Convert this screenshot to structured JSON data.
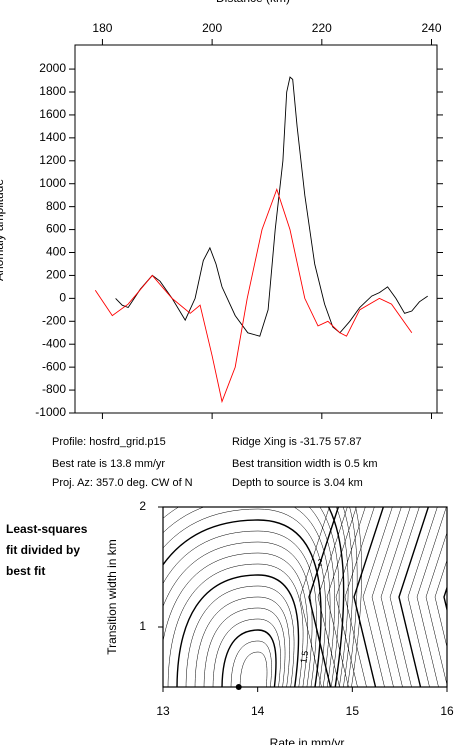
{
  "chart_data": [
    {
      "type": "line",
      "xlabel": "Distance (km)",
      "ylabel": "Anomaly amplitude",
      "xlim": [
        175,
        241
      ],
      "ylim": [
        -1000,
        2210
      ],
      "xticks": [
        180,
        200,
        220,
        240
      ],
      "yticks": [
        -1000,
        -800,
        -600,
        -400,
        -200,
        0,
        200,
        400,
        600,
        800,
        1000,
        1200,
        1400,
        1600,
        1800,
        2000
      ],
      "series": [
        {
          "color": "#000000",
          "x": [
            182.4,
            183.6,
            184.7,
            186.9,
            189.1,
            190.5,
            192.7,
            195.1,
            196.9,
            198.4,
            199.6,
            200.7,
            201.8,
            204.2,
            206.5,
            208.7,
            210.2,
            211.5,
            212.9,
            213.6,
            214.2,
            214.7,
            215.5,
            216.9,
            218.7,
            220.5,
            222.0,
            223.3,
            225.1,
            226.9,
            229.1,
            230.5,
            232.0,
            233.5,
            235.1,
            236.4,
            237.8,
            239.3
          ],
          "values": [
            0,
            -60,
            -80,
            80,
            200,
            150,
            0,
            -190,
            0,
            330,
            440,
            300,
            100,
            -150,
            -300,
            -330,
            -100,
            600,
            1200,
            1800,
            1930,
            1910,
            1500,
            900,
            300,
            -50,
            -250,
            -300,
            -200,
            -80,
            20,
            50,
            100,
            0,
            -130,
            -110,
            -30,
            20
          ]
        },
        {
          "color": "#ff0000",
          "x": [
            178.7,
            181.8,
            184.7,
            189.1,
            192.7,
            196.0,
            197.8,
            200.0,
            201.8,
            204.2,
            206.4,
            209.1,
            211.8,
            214.2,
            216.9,
            219.3,
            221.1,
            223.3,
            224.5,
            226.9,
            230.5,
            232.7,
            236.4
          ],
          "values": [
            70,
            -150,
            -50,
            200,
            0,
            -130,
            -60,
            -500,
            -900,
            -600,
            0,
            600,
            950,
            600,
            0,
            -240,
            -200,
            -300,
            -330,
            -100,
            0,
            -50,
            -300
          ]
        }
      ],
      "annotations": [
        "Profile: hosfrd_grid.p15",
        "Ridge Xing is -31.75 57.87",
        "Best rate is 13.8 mm/yr",
        "Best transition width is 0.5 km",
        "Proj. Az: 357.0 deg. CW of N",
        "Depth to source is   3.04 km"
      ]
    },
    {
      "type": "contour",
      "title_lines": [
        "Least-squares",
        "fit divided by",
        "best fit"
      ],
      "xlabel": "Rate in mm/yr",
      "ylabel": "Transition width in km",
      "xlim": [
        13,
        16
      ],
      "ylim": [
        0.5,
        2
      ],
      "xticks": [
        13,
        14,
        15,
        16
      ],
      "yticks": [
        1,
        2
      ],
      "contour_levels": [
        2,
        1.5
      ],
      "x": [
        13.8
      ],
      "y": [
        0.5
      ]
    }
  ]
}
